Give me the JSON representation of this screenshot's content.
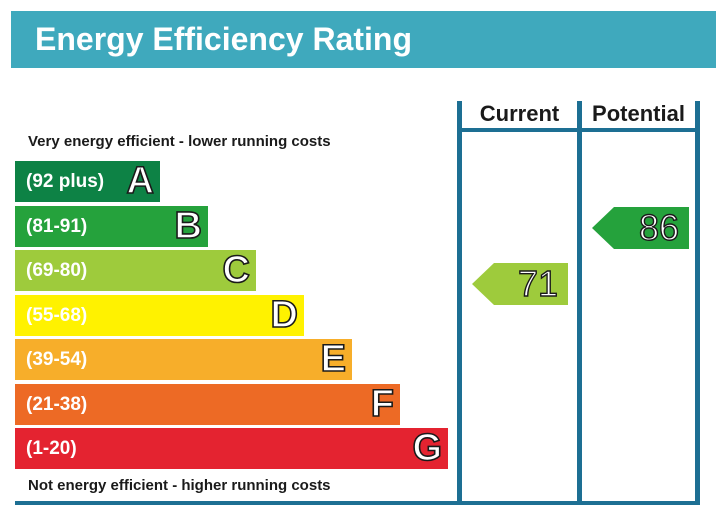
{
  "title": "Energy Efficiency Rating",
  "header": {
    "current": "Current",
    "potential": "Potential"
  },
  "notes": {
    "top": "Very energy efficient - lower running costs",
    "bottom": "Not energy efficient - higher running costs"
  },
  "chart_data": {
    "type": "bar",
    "bands": [
      {
        "range": "(92 plus)",
        "letter": "A",
        "color": "#0d8245"
      },
      {
        "range": "(81-91)",
        "letter": "B",
        "color": "#25a23c"
      },
      {
        "range": "(69-80)",
        "letter": "C",
        "color": "#9ecb3c"
      },
      {
        "range": "(55-68)",
        "letter": "D",
        "color": "#fff200"
      },
      {
        "range": "(39-54)",
        "letter": "E",
        "color": "#f7ae2a"
      },
      {
        "range": "(21-38)",
        "letter": "F",
        "color": "#ed6a25"
      },
      {
        "range": "(1-20)",
        "letter": "G",
        "color": "#e42330"
      }
    ],
    "current": {
      "value": "71",
      "band": "C",
      "color": "#9ecb3c"
    },
    "potential": {
      "value": "86",
      "band": "B",
      "color": "#25a23c"
    }
  }
}
